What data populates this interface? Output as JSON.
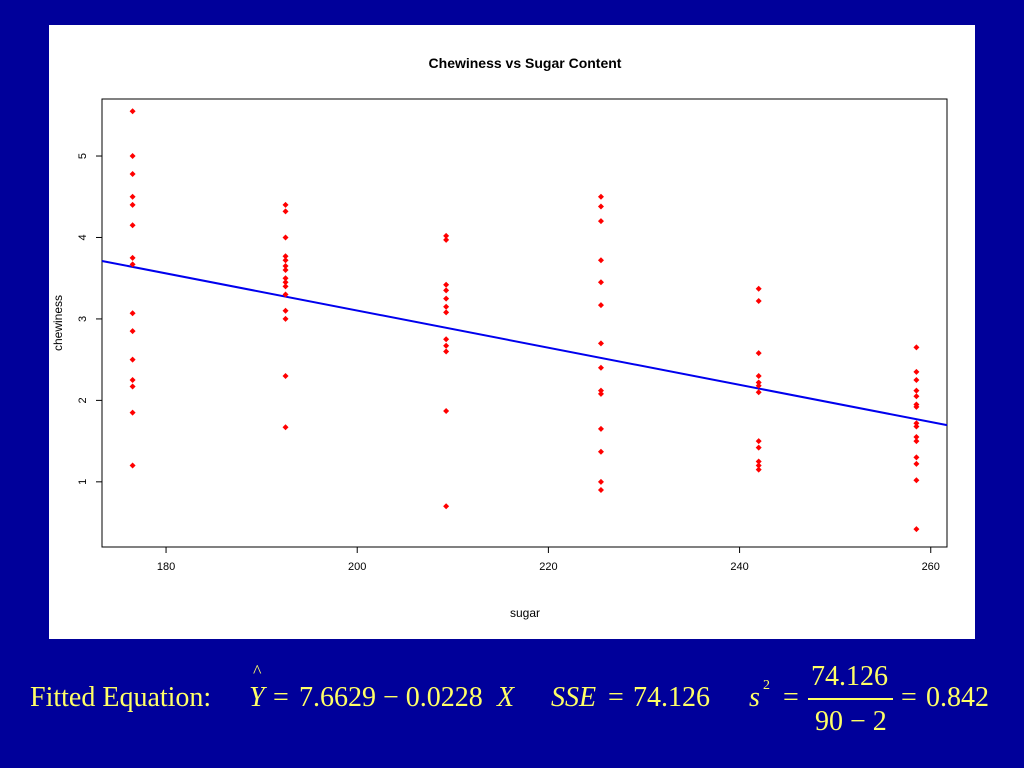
{
  "chart_data": {
    "type": "scatter",
    "title": "Chewiness vs Sugar Content",
    "xlabel": "sugar",
    "ylabel": "chewiness",
    "xlim": [
      173.3,
      261.7
    ],
    "ylim": [
      0.2,
      5.7
    ],
    "x_ticks": [
      180,
      200,
      220,
      240,
      260
    ],
    "y_ticks": [
      1,
      2,
      3,
      4,
      5
    ],
    "grid": false,
    "point_color": "#ff0000",
    "line_color": "#0000ee",
    "regression": {
      "intercept": 7.6629,
      "slope": -0.0228
    },
    "points": [
      {
        "x": 176.5,
        "y": 5.55
      },
      {
        "x": 176.5,
        "y": 5.0
      },
      {
        "x": 176.5,
        "y": 4.78
      },
      {
        "x": 176.5,
        "y": 4.5
      },
      {
        "x": 176.5,
        "y": 4.4
      },
      {
        "x": 176.5,
        "y": 4.15
      },
      {
        "x": 176.5,
        "y": 3.75
      },
      {
        "x": 176.5,
        "y": 3.67
      },
      {
        "x": 176.5,
        "y": 3.07
      },
      {
        "x": 176.5,
        "y": 2.85
      },
      {
        "x": 176.5,
        "y": 2.5
      },
      {
        "x": 176.5,
        "y": 2.25
      },
      {
        "x": 176.5,
        "y": 2.17
      },
      {
        "x": 176.5,
        "y": 1.85
      },
      {
        "x": 176.5,
        "y": 1.2
      },
      {
        "x": 192.5,
        "y": 4.4
      },
      {
        "x": 192.5,
        "y": 4.32
      },
      {
        "x": 192.5,
        "y": 4.0
      },
      {
        "x": 192.5,
        "y": 3.77
      },
      {
        "x": 192.5,
        "y": 3.72
      },
      {
        "x": 192.5,
        "y": 3.65
      },
      {
        "x": 192.5,
        "y": 3.6
      },
      {
        "x": 192.5,
        "y": 3.5
      },
      {
        "x": 192.5,
        "y": 3.45
      },
      {
        "x": 192.5,
        "y": 3.4
      },
      {
        "x": 192.5,
        "y": 3.3
      },
      {
        "x": 192.5,
        "y": 3.1
      },
      {
        "x": 192.5,
        "y": 3.0
      },
      {
        "x": 192.5,
        "y": 2.3
      },
      {
        "x": 192.5,
        "y": 1.67
      },
      {
        "x": 209.3,
        "y": 4.02
      },
      {
        "x": 209.3,
        "y": 3.97
      },
      {
        "x": 209.3,
        "y": 3.42
      },
      {
        "x": 209.3,
        "y": 3.35
      },
      {
        "x": 209.3,
        "y": 3.25
      },
      {
        "x": 209.3,
        "y": 3.15
      },
      {
        "x": 209.3,
        "y": 3.08
      },
      {
        "x": 209.3,
        "y": 2.75
      },
      {
        "x": 209.3,
        "y": 2.67
      },
      {
        "x": 209.3,
        "y": 2.6
      },
      {
        "x": 209.3,
        "y": 1.87
      },
      {
        "x": 209.3,
        "y": 0.7
      },
      {
        "x": 225.5,
        "y": 4.5
      },
      {
        "x": 225.5,
        "y": 4.38
      },
      {
        "x": 225.5,
        "y": 4.2
      },
      {
        "x": 225.5,
        "y": 3.72
      },
      {
        "x": 225.5,
        "y": 3.45
      },
      {
        "x": 225.5,
        "y": 3.17
      },
      {
        "x": 225.5,
        "y": 2.7
      },
      {
        "x": 225.5,
        "y": 2.4
      },
      {
        "x": 225.5,
        "y": 2.12
      },
      {
        "x": 225.5,
        "y": 2.08
      },
      {
        "x": 225.5,
        "y": 1.65
      },
      {
        "x": 225.5,
        "y": 1.37
      },
      {
        "x": 225.5,
        "y": 1.0
      },
      {
        "x": 225.5,
        "y": 0.9
      },
      {
        "x": 242.0,
        "y": 3.37
      },
      {
        "x": 242.0,
        "y": 3.22
      },
      {
        "x": 242.0,
        "y": 2.58
      },
      {
        "x": 242.0,
        "y": 2.3
      },
      {
        "x": 242.0,
        "y": 2.22
      },
      {
        "x": 242.0,
        "y": 2.18
      },
      {
        "x": 242.0,
        "y": 2.1
      },
      {
        "x": 242.0,
        "y": 1.5
      },
      {
        "x": 242.0,
        "y": 1.42
      },
      {
        "x": 242.0,
        "y": 1.25
      },
      {
        "x": 242.0,
        "y": 1.2
      },
      {
        "x": 242.0,
        "y": 1.15
      },
      {
        "x": 258.5,
        "y": 2.65
      },
      {
        "x": 258.5,
        "y": 2.35
      },
      {
        "x": 258.5,
        "y": 2.25
      },
      {
        "x": 258.5,
        "y": 2.12
      },
      {
        "x": 258.5,
        "y": 2.05
      },
      {
        "x": 258.5,
        "y": 1.95
      },
      {
        "x": 258.5,
        "y": 1.92
      },
      {
        "x": 258.5,
        "y": 1.72
      },
      {
        "x": 258.5,
        "y": 1.68
      },
      {
        "x": 258.5,
        "y": 1.55
      },
      {
        "x": 258.5,
        "y": 1.5
      },
      {
        "x": 258.5,
        "y": 1.3
      },
      {
        "x": 258.5,
        "y": 1.22
      },
      {
        "x": 258.5,
        "y": 1.02
      },
      {
        "x": 258.5,
        "y": 0.42
      }
    ]
  },
  "footer": {
    "fitted_label": "Fitted Equation:",
    "hat": "^",
    "y_symbol": "Y",
    "equals": "=",
    "equation_rhs": "7.6629 − 0.0228",
    "x_symbol": "X",
    "sse_label": "SSE",
    "sse_value": "74.126",
    "s_symbol": "s",
    "s_exponent": "2",
    "frac_numerator": "74.126",
    "frac_denominator": "90 − 2",
    "s2_value": "0.842"
  }
}
